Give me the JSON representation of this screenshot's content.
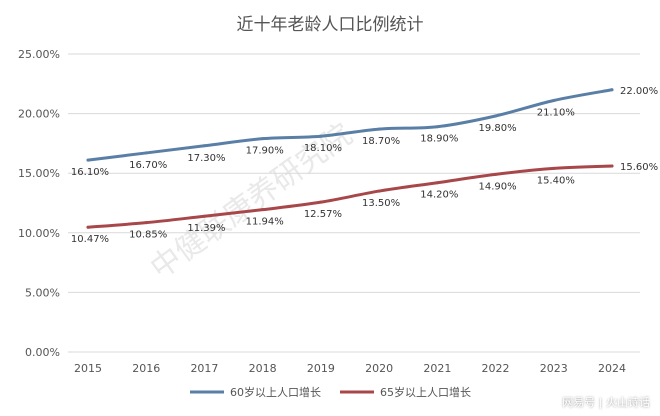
{
  "watermark": "中健联康养研究院",
  "credit": "网易号 | 火山诗话",
  "colors": {
    "series1": "#5a7fa6",
    "series2": "#a8474a",
    "grid": "#d9d9d9"
  },
  "chart_data": {
    "type": "line",
    "title": "近十年老龄人口比例统计",
    "x": [
      "2015",
      "2016",
      "2017",
      "2018",
      "2019",
      "2020",
      "2021",
      "2022",
      "2023",
      "2024"
    ],
    "ylim": [
      0,
      25
    ],
    "yticks": [
      "0.00%",
      "5.00%",
      "10.00%",
      "15.00%",
      "20.00%",
      "25.00%"
    ],
    "grid": true,
    "legend": "bottom",
    "series": [
      {
        "name": "60岁以上人口增长",
        "values": [
          16.1,
          16.7,
          17.3,
          17.9,
          18.1,
          18.7,
          18.9,
          19.8,
          21.1,
          22.0
        ],
        "labels": [
          "16.10%",
          "16.70%",
          "17.30%",
          "17.90%",
          "18.10%",
          "18.70%",
          "18.90%",
          "19.80%",
          "21.10%",
          "22.00%"
        ]
      },
      {
        "name": "65岁以上人口增长",
        "values": [
          10.47,
          10.85,
          11.39,
          11.94,
          12.57,
          13.5,
          14.2,
          14.9,
          15.4,
          15.6
        ],
        "labels": [
          "10.47%",
          "10.85%",
          "11.39%",
          "11.94%",
          "12.57%",
          "13.50%",
          "14.20%",
          "14.90%",
          "15.40%",
          "15.60%"
        ]
      }
    ]
  }
}
